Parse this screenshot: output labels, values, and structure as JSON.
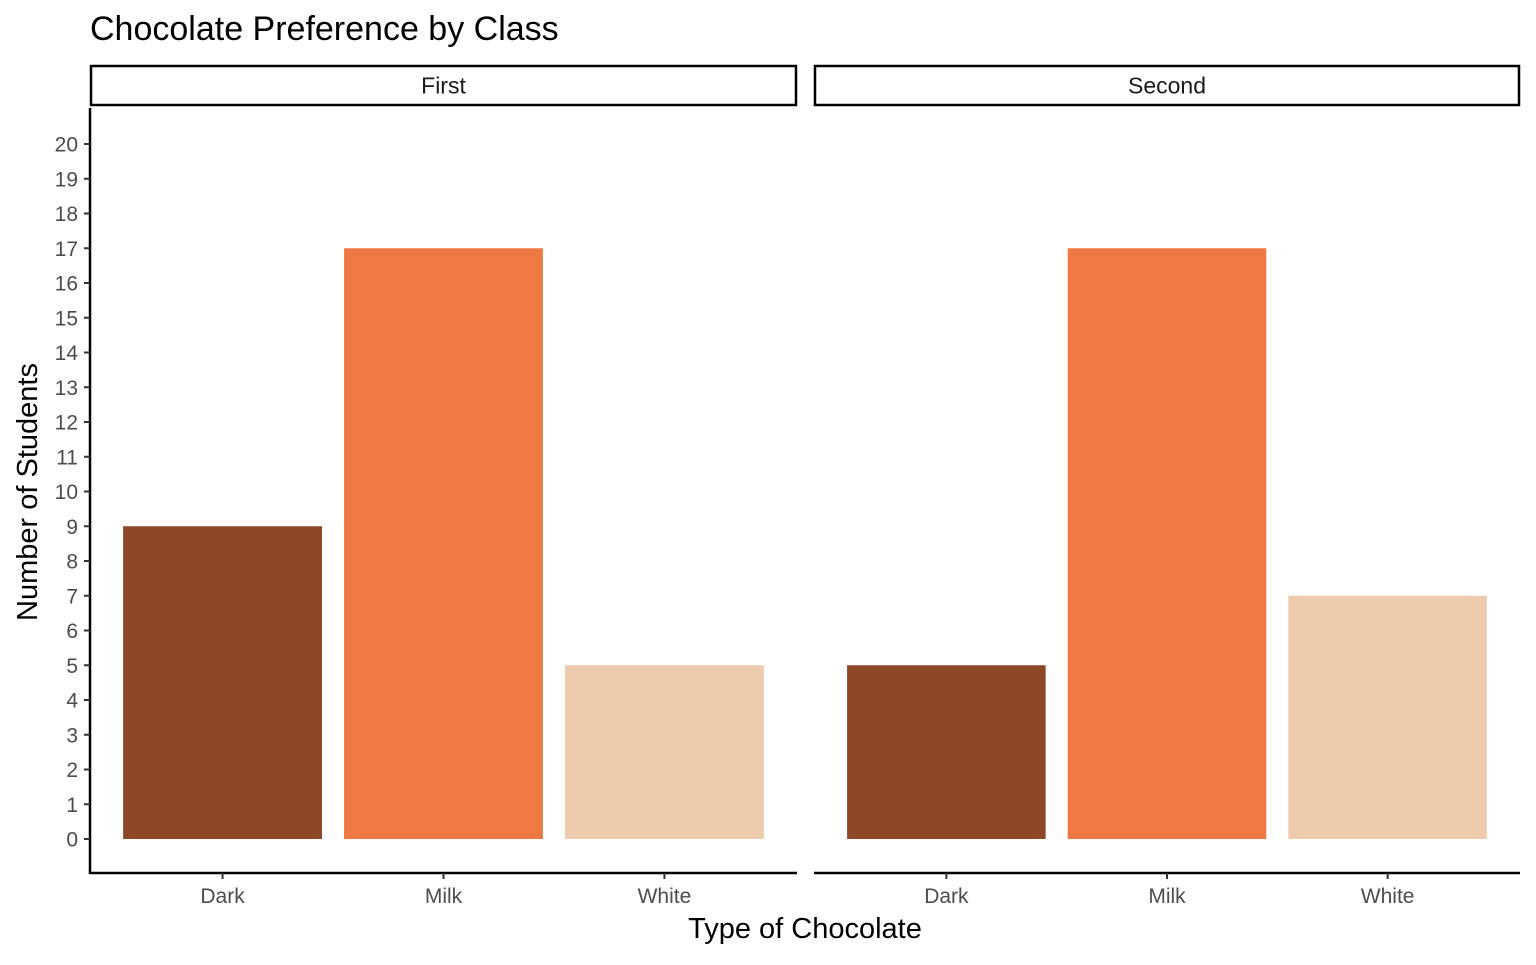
{
  "chart_data": {
    "type": "bar",
    "title": "Chocolate Preference by Class",
    "xlabel": "Type of Chocolate",
    "ylabel": "Number of Students",
    "ylim": [
      0,
      20
    ],
    "yticks": [
      0,
      1,
      2,
      3,
      4,
      5,
      6,
      7,
      8,
      9,
      10,
      11,
      12,
      13,
      14,
      15,
      16,
      17,
      18,
      19,
      20
    ],
    "categories": [
      "Dark",
      "Milk",
      "White"
    ],
    "colors": {
      "Dark": "#8B4726",
      "Milk": "#EE7942",
      "White": "#EECBAD"
    },
    "facets": [
      {
        "name": "First",
        "values": [
          9,
          17,
          5
        ]
      },
      {
        "name": "Second",
        "values": [
          5,
          17,
          7
        ]
      }
    ],
    "grid": false,
    "legend": "none"
  }
}
